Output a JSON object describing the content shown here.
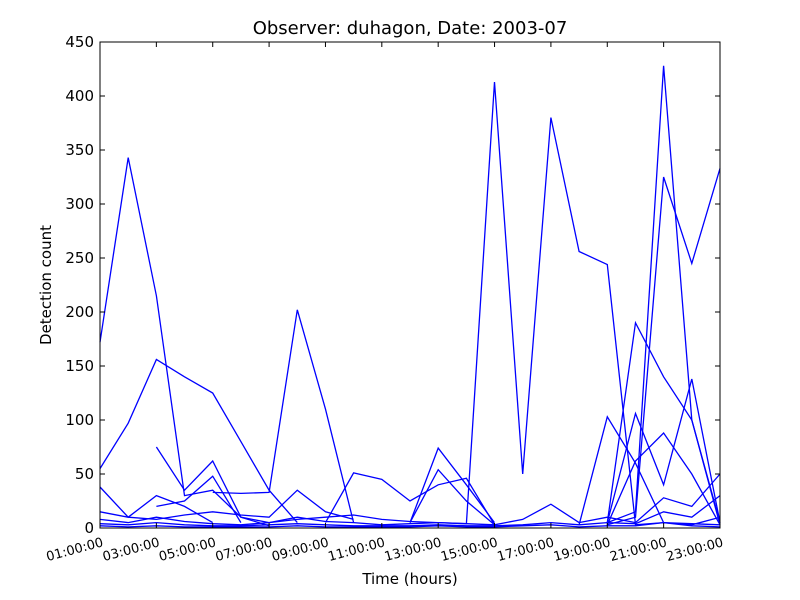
{
  "chart_data": {
    "type": "line",
    "title": "Observer: duhagon, Date: 2003-07",
    "xlabel": "Time (hours)",
    "ylabel": "Detection count",
    "xlim": [
      1,
      23
    ],
    "ylim": [
      0,
      450
    ],
    "x_ticks": [
      {
        "value": 1,
        "label": "01:00:00"
      },
      {
        "value": 3,
        "label": "03:00:00"
      },
      {
        "value": 5,
        "label": "05:00:00"
      },
      {
        "value": 7,
        "label": "07:00:00"
      },
      {
        "value": 9,
        "label": "09:00:00"
      },
      {
        "value": 11,
        "label": "11:00:00"
      },
      {
        "value": 13,
        "label": "13:00:00"
      },
      {
        "value": 15,
        "label": "15:00:00"
      },
      {
        "value": 17,
        "label": "17:00:00"
      },
      {
        "value": 19,
        "label": "19:00:00"
      },
      {
        "value": 21,
        "label": "21:00:00"
      },
      {
        "value": 23,
        "label": "23:00:00"
      }
    ],
    "y_ticks": [
      0,
      50,
      100,
      150,
      200,
      250,
      300,
      350,
      400,
      450
    ],
    "line_color": "#0000ff",
    "grid": false,
    "legend": "none",
    "series": [
      {
        "x": [
          1,
          2,
          3,
          4,
          5,
          6,
          7,
          8,
          9,
          10,
          11,
          12,
          13,
          14,
          15,
          16,
          17,
          18,
          19,
          20,
          21,
          22,
          23
        ],
        "y": [
          172,
          343,
          215,
          30,
          35,
          10,
          5,
          8,
          10,
          12,
          8,
          6,
          5,
          4,
          413,
          50,
          380,
          256,
          244,
          3,
          5,
          4,
          3
        ]
      },
      {
        "x": [
          19,
          20,
          21,
          22,
          23
        ],
        "y": [
          5,
          15,
          428,
          100,
          5
        ]
      },
      {
        "x": [
          19,
          20,
          21,
          22,
          23
        ],
        "y": [
          3,
          10,
          325,
          245,
          333
        ]
      },
      {
        "x": [
          1,
          2,
          3,
          4,
          5,
          6,
          7,
          8
        ],
        "y": [
          55,
          97,
          156,
          140,
          125,
          80,
          35,
          5
        ]
      },
      {
        "x": [
          5,
          6,
          7,
          8,
          9,
          10
        ],
        "y": [
          33,
          32,
          33,
          202,
          110,
          5
        ]
      },
      {
        "x": [
          18,
          19,
          20,
          21,
          22,
          23
        ],
        "y": [
          3,
          103,
          60,
          5,
          2,
          1
        ]
      },
      {
        "x": [
          19,
          20,
          21,
          22,
          23
        ],
        "y": [
          5,
          190,
          140,
          100,
          3
        ]
      },
      {
        "x": [
          3,
          4,
          5,
          6,
          7
        ],
        "y": [
          75,
          35,
          62,
          10,
          2
        ]
      },
      {
        "x": [
          1,
          2,
          3,
          4,
          5
        ],
        "y": [
          38,
          10,
          30,
          20,
          5
        ]
      },
      {
        "x": [
          12,
          13,
          14,
          15
        ],
        "y": [
          5,
          74,
          40,
          5
        ]
      },
      {
        "x": [
          12,
          13,
          14,
          15
        ],
        "y": [
          5,
          54,
          25,
          3
        ]
      },
      {
        "x": [
          9,
          10,
          11,
          12,
          13,
          14,
          15
        ],
        "y": [
          5,
          51,
          45,
          25,
          40,
          46,
          3
        ]
      },
      {
        "x": [
          19,
          20,
          21,
          22,
          23
        ],
        "y": [
          5,
          106,
          40,
          138,
          5
        ]
      },
      {
        "x": [
          19,
          20,
          21,
          22,
          23
        ],
        "y": [
          3,
          62,
          88,
          50,
          3
        ]
      },
      {
        "x": [
          3,
          4,
          5,
          6
        ],
        "y": [
          20,
          25,
          48,
          5
        ]
      },
      {
        "x": [
          1,
          2,
          3,
          4,
          5,
          6,
          7,
          8,
          9,
          10
        ],
        "y": [
          15,
          10,
          8,
          12,
          15,
          12,
          10,
          35,
          15,
          8
        ]
      },
      {
        "x": [
          1,
          2,
          3,
          4,
          5,
          6,
          7,
          8,
          9,
          10,
          11,
          12,
          13,
          14,
          15,
          16,
          17,
          18,
          19,
          20,
          21,
          22,
          23
        ],
        "y": [
          8,
          5,
          10,
          6,
          4,
          3,
          5,
          10,
          6,
          5,
          3,
          4,
          5,
          4,
          3,
          8,
          22,
          5,
          10,
          5,
          28,
          20,
          50
        ]
      },
      {
        "x": [
          1,
          2,
          3,
          4,
          5,
          6,
          7,
          8,
          9,
          10,
          11,
          12,
          13,
          14,
          15,
          16,
          17,
          18,
          19,
          20,
          21,
          22,
          23
        ],
        "y": [
          4,
          3,
          5,
          3,
          2,
          2,
          3,
          4,
          3,
          2,
          2,
          2,
          3,
          2,
          2,
          3,
          5,
          3,
          5,
          4,
          15,
          10,
          30
        ]
      },
      {
        "x": [
          1,
          2,
          3,
          4,
          5,
          6,
          7,
          8,
          9,
          10,
          11,
          12,
          13,
          14,
          15,
          16,
          17,
          18,
          19,
          20,
          21,
          22,
          23
        ],
        "y": [
          2,
          1,
          2,
          1,
          1,
          1,
          1,
          2,
          1,
          1,
          1,
          1,
          2,
          1,
          1,
          2,
          3,
          1,
          2,
          2,
          5,
          3,
          10
        ]
      }
    ]
  }
}
